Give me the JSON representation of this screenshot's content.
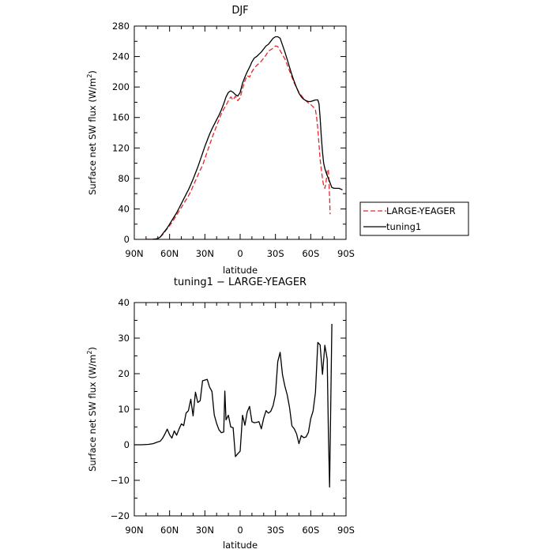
{
  "chart_data": [
    {
      "type": "line",
      "title": "DJF",
      "xlabel": "latitude",
      "ylabel_main": "Surface net SW flux (W/m",
      "ylabel_sup": "2",
      "ylabel_tail": ")",
      "xlim": [
        90,
        -90
      ],
      "ylim": [
        0,
        280
      ],
      "xticks": [
        90,
        60,
        30,
        0,
        -30,
        -60,
        -90
      ],
      "xtick_labels": [
        "90N",
        "60N",
        "30N",
        "0",
        "30S",
        "60S",
        "90S"
      ],
      "yticks": [
        0,
        40,
        80,
        120,
        160,
        200,
        240,
        280
      ],
      "ytick_labels": [
        "0",
        "40",
        "80",
        "120",
        "160",
        "200",
        "240",
        "280"
      ],
      "legend_position": "outside-right",
      "series": [
        {
          "name": "LARGE-YEAGER",
          "color": "#e8262a",
          "dash": "dashed",
          "points": [
            [
              80,
              0
            ],
            [
              75,
              0
            ],
            [
              72,
              0.5
            ],
            [
              70,
              1
            ],
            [
              68,
              3
            ],
            [
              66,
              6
            ],
            [
              64,
              10
            ],
            [
              62,
              14
            ],
            [
              60,
              18
            ],
            [
              58,
              22
            ],
            [
              56,
              27
            ],
            [
              54,
              32
            ],
            [
              52,
              37
            ],
            [
              50,
              42
            ],
            [
              48,
              47
            ],
            [
              46,
              52
            ],
            [
              44,
              57
            ],
            [
              42,
              63
            ],
            [
              40,
              70
            ],
            [
              38,
              77
            ],
            [
              36,
              84
            ],
            [
              34,
              91
            ],
            [
              32,
              97
            ],
            [
              30,
              106
            ],
            [
              28,
              115
            ],
            [
              26,
              124
            ],
            [
              24,
              133
            ],
            [
              22,
              141
            ],
            [
              20,
              149
            ],
            [
              18,
              157
            ],
            [
              16,
              165
            ],
            [
              14,
              171
            ],
            [
              12,
              176
            ],
            [
              10,
              182
            ],
            [
              8,
              187
            ],
            [
              6,
              183
            ],
            [
              4,
              188
            ],
            [
              2,
              182
            ],
            [
              0,
              186
            ],
            [
              -2,
              198
            ],
            [
              -4,
              208
            ],
            [
              -6,
              215
            ],
            [
              -8,
              213
            ],
            [
              -10,
              220
            ],
            [
              -12,
              225
            ],
            [
              -14,
              228
            ],
            [
              -16,
              231
            ],
            [
              -18,
              234
            ],
            [
              -20,
              238
            ],
            [
              -22,
              242
            ],
            [
              -24,
              247
            ],
            [
              -26,
              249
            ],
            [
              -28,
              251
            ],
            [
              -30,
              254
            ],
            [
              -32,
              253
            ],
            [
              -34,
              248
            ],
            [
              -36,
              242
            ],
            [
              -38,
              237
            ],
            [
              -40,
              229
            ],
            [
              -42,
              221
            ],
            [
              -44,
              213
            ],
            [
              -46,
              205
            ],
            [
              -48,
              199
            ],
            [
              -50,
              193
            ],
            [
              -52,
              189
            ],
            [
              -54,
              185
            ],
            [
              -56,
              182
            ],
            [
              -58,
              179
            ],
            [
              -60,
              177
            ],
            [
              -62,
              174
            ],
            [
              -64,
              170
            ],
            [
              -65,
              160
            ],
            [
              -66,
              145
            ],
            [
              -67,
              125
            ],
            [
              -68,
              105
            ],
            [
              -69,
              92
            ],
            [
              -70,
              80
            ],
            [
              -71,
              70
            ],
            [
              -72,
              67
            ],
            [
              -73,
              75
            ],
            [
              -74,
              90
            ],
            [
              -75,
              92
            ],
            [
              -76,
              55
            ],
            [
              -76.5,
              33
            ]
          ]
        },
        {
          "name": "tuning1",
          "color": "#000000",
          "dash": "solid",
          "points": [
            [
              80,
              0
            ],
            [
              75,
              0
            ],
            [
              72,
              0.5
            ],
            [
              70,
              1
            ],
            [
              68,
              3
            ],
            [
              66,
              7
            ],
            [
              64,
              11
            ],
            [
              62,
              15
            ],
            [
              60,
              20
            ],
            [
              58,
              25
            ],
            [
              56,
              30
            ],
            [
              54,
              35
            ],
            [
              52,
              41
            ],
            [
              50,
              47
            ],
            [
              48,
              53
            ],
            [
              46,
              59
            ],
            [
              44,
              65
            ],
            [
              42,
              72
            ],
            [
              40,
              79
            ],
            [
              38,
              87
            ],
            [
              36,
              95
            ],
            [
              34,
              104
            ],
            [
              32,
              113
            ],
            [
              30,
              122
            ],
            [
              28,
              130
            ],
            [
              26,
              138
            ],
            [
              24,
              145
            ],
            [
              22,
              151
            ],
            [
              20,
              157
            ],
            [
              18,
              163
            ],
            [
              16,
              170
            ],
            [
              14,
              178
            ],
            [
              12,
              187
            ],
            [
              10,
              193
            ],
            [
              8,
              195
            ],
            [
              6,
              193
            ],
            [
              4,
              190
            ],
            [
              2,
              188
            ],
            [
              0,
              193
            ],
            [
              -2,
              205
            ],
            [
              -4,
              213
            ],
            [
              -6,
              220
            ],
            [
              -8,
              226
            ],
            [
              -10,
              233
            ],
            [
              -12,
              238
            ],
            [
              -14,
              240
            ],
            [
              -16,
              243
            ],
            [
              -18,
              246
            ],
            [
              -20,
              250
            ],
            [
              -22,
              254
            ],
            [
              -24,
              256
            ],
            [
              -26,
              260
            ],
            [
              -28,
              264
            ],
            [
              -30,
              266
            ],
            [
              -32,
              266
            ],
            [
              -34,
              264
            ],
            [
              -36,
              255
            ],
            [
              -38,
              246
            ],
            [
              -40,
              236
            ],
            [
              -42,
              226
            ],
            [
              -44,
              216
            ],
            [
              -46,
              207
            ],
            [
              -48,
              199
            ],
            [
              -50,
              192
            ],
            [
              -52,
              187
            ],
            [
              -54,
              184
            ],
            [
              -56,
              182
            ],
            [
              -58,
              181
            ],
            [
              -60,
              181
            ],
            [
              -62,
              182
            ],
            [
              -64,
              183
            ],
            [
              -66,
              183
            ],
            [
              -67,
              178
            ],
            [
              -68,
              160
            ],
            [
              -69,
              135
            ],
            [
              -70,
              115
            ],
            [
              -71,
              100
            ],
            [
              -72,
              93
            ],
            [
              -73,
              88
            ],
            [
              -74,
              84
            ],
            [
              -75,
              80
            ],
            [
              -76,
              76
            ],
            [
              -77,
              72
            ],
            [
              -78,
              68
            ],
            [
              -80,
              67
            ],
            [
              -84,
              67
            ],
            [
              -87,
              65
            ]
          ]
        }
      ]
    },
    {
      "type": "line",
      "title": "tuning1 − LARGE-YEAGER",
      "xlabel": "latitude",
      "ylabel_main": "Surface net SW flux (W/m",
      "ylabel_sup": "2",
      "ylabel_tail": ")",
      "xlim": [
        90,
        -90
      ],
      "ylim": [
        -20,
        40
      ],
      "xticks": [
        90,
        60,
        30,
        0,
        -30,
        -60,
        -90
      ],
      "xtick_labels": [
        "90N",
        "60N",
        "30N",
        "0",
        "30S",
        "60S",
        "90S"
      ],
      "yticks": [
        -20,
        -10,
        0,
        10,
        20,
        30,
        40
      ],
      "ytick_labels": [
        "−20",
        "−10",
        "0",
        "10",
        "20",
        "30",
        "40"
      ],
      "series": [
        {
          "color": "#000000",
          "dash": "solid",
          "points": [
            [
              90,
              0
            ],
            [
              84,
              0
            ],
            [
              78,
              0.1
            ],
            [
              74,
              0.3
            ],
            [
              70,
              0.8
            ],
            [
              68,
              1
            ],
            [
              66,
              1.8
            ],
            [
              64,
              3
            ],
            [
              62,
              4.4
            ],
            [
              60,
              2.8
            ],
            [
              58,
              1.9
            ],
            [
              56,
              3.9
            ],
            [
              54,
              2.7
            ],
            [
              52,
              4.4
            ],
            [
              50,
              5.9
            ],
            [
              48,
              5.4
            ],
            [
              46,
              8.9
            ],
            [
              44,
              9.6
            ],
            [
              42,
              12.8
            ],
            [
              40,
              8.1
            ],
            [
              38,
              14.8
            ],
            [
              36,
              11.9
            ],
            [
              34,
              12.4
            ],
            [
              32,
              18
            ],
            [
              30,
              18.2
            ],
            [
              28,
              18.4
            ],
            [
              26,
              16.2
            ],
            [
              24,
              15
            ],
            [
              22,
              8.4
            ],
            [
              20,
              6
            ],
            [
              18,
              4.2
            ],
            [
              16,
              3.4
            ],
            [
              14,
              3.6
            ],
            [
              13,
              15.1
            ],
            [
              12,
              7
            ],
            [
              10,
              8.3
            ],
            [
              8,
              5
            ],
            [
              6,
              4.8
            ],
            [
              4,
              -3.3
            ],
            [
              2,
              -2.5
            ],
            [
              0,
              -1.8
            ],
            [
              -2,
              8.3
            ],
            [
              -4,
              5.5
            ],
            [
              -6,
              9.2
            ],
            [
              -8,
              10.8
            ],
            [
              -10,
              6.5
            ],
            [
              -12,
              6.2
            ],
            [
              -14,
              6.3
            ],
            [
              -16,
              6.5
            ],
            [
              -18,
              4.5
            ],
            [
              -20,
              7.5
            ],
            [
              -22,
              9.6
            ],
            [
              -24,
              8.9
            ],
            [
              -26,
              9.4
            ],
            [
              -28,
              11
            ],
            [
              -30,
              14.2
            ],
            [
              -32,
              23.4
            ],
            [
              -34,
              26
            ],
            [
              -36,
              19.7
            ],
            [
              -38,
              16.5
            ],
            [
              -40,
              14
            ],
            [
              -42,
              10.5
            ],
            [
              -44,
              5.3
            ],
            [
              -46,
              4.5
            ],
            [
              -48,
              3
            ],
            [
              -50,
              0.3
            ],
            [
              -52,
              2.6
            ],
            [
              -54,
              2
            ],
            [
              -56,
              2.2
            ],
            [
              -58,
              3.5
            ],
            [
              -60,
              7.3
            ],
            [
              -62,
              9.5
            ],
            [
              -64,
              14.7
            ],
            [
              -66,
              28.8
            ],
            [
              -68,
              28.1
            ],
            [
              -70,
              19.8
            ],
            [
              -72,
              28
            ],
            [
              -74,
              24.1
            ],
            [
              -75,
              3
            ],
            [
              -76,
              -11.9
            ],
            [
              -77,
              10
            ],
            [
              -78,
              34
            ]
          ]
        }
      ]
    }
  ],
  "legend": {
    "items": [
      {
        "label": "LARGE-YEAGER",
        "color": "#e8262a",
        "dash": "dashed"
      },
      {
        "label": "tuning1",
        "color": "#000000",
        "dash": "solid"
      }
    ]
  }
}
